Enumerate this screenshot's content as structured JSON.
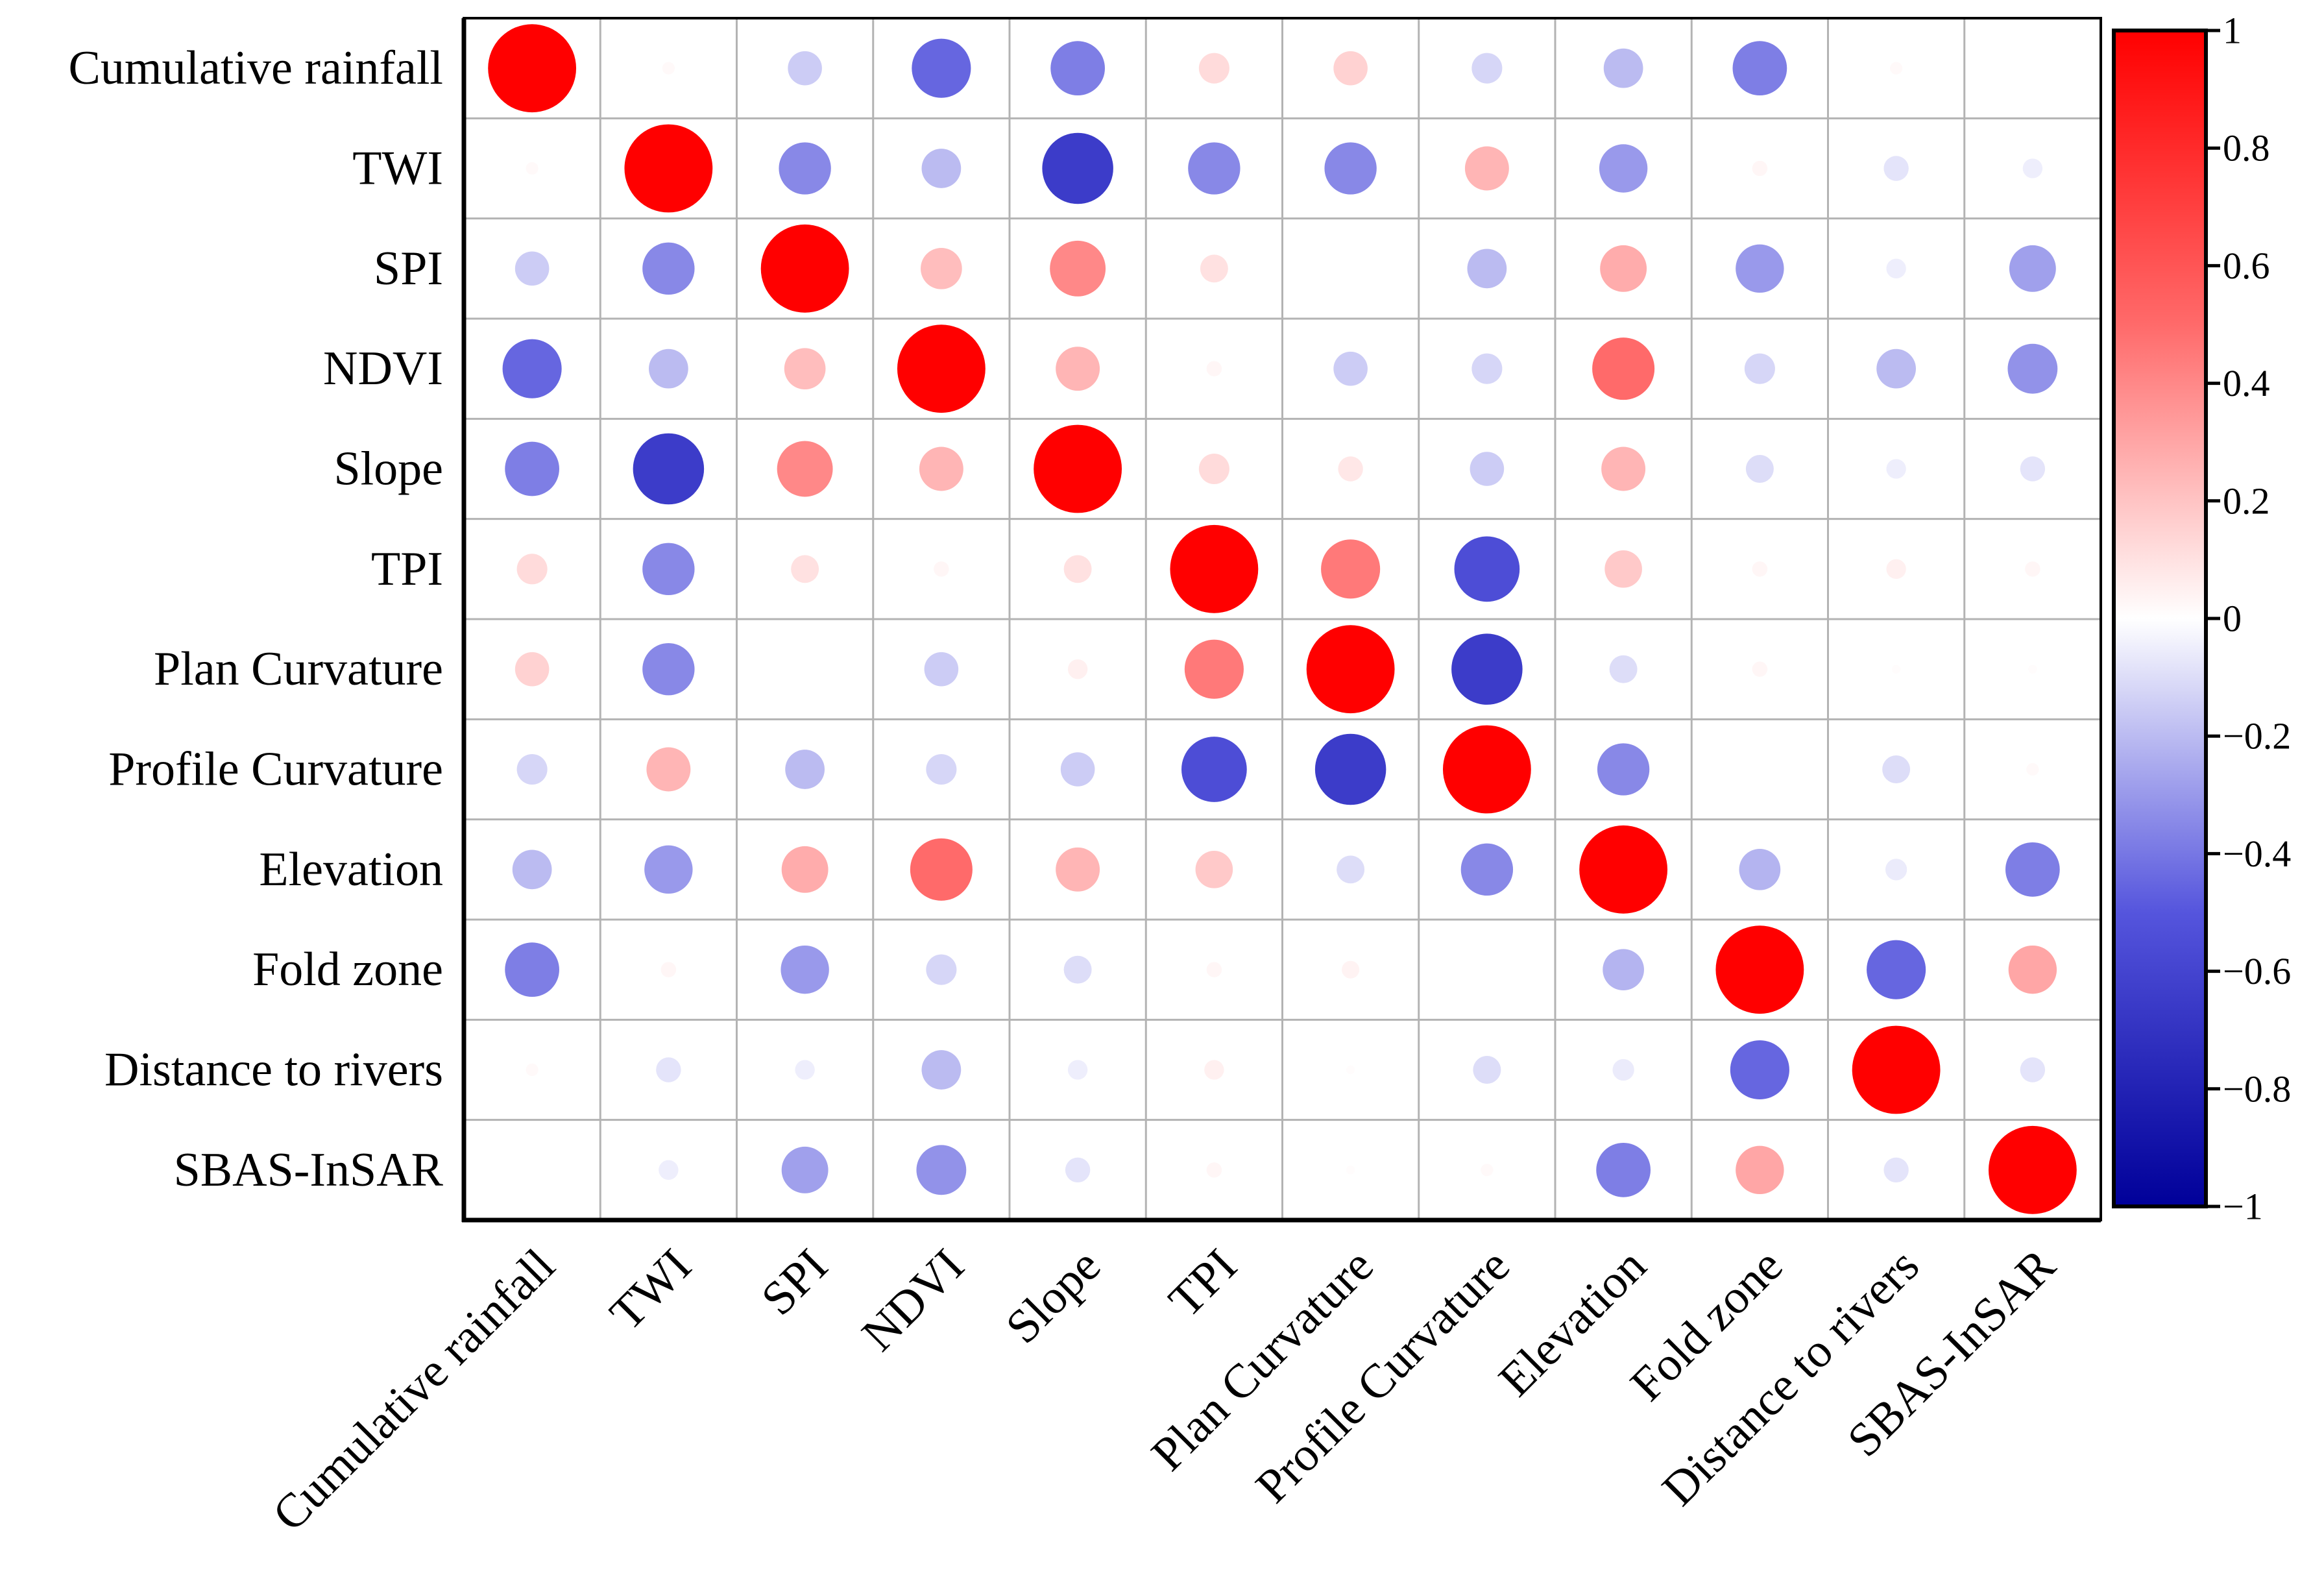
{
  "chart_data": {
    "type": "heatmap",
    "subtype": "correlation-circles",
    "title": "",
    "variables": [
      "Cumulative rainfall",
      "TWI",
      "SPI",
      "NDVI",
      "Slope",
      "TPI",
      "Plan Curvature",
      "Profile Curvature",
      "Elevation",
      "Fold zone",
      "Distance to rivers",
      "SBAS-InSAR"
    ],
    "matrix": [
      [
        1.0,
        0.02,
        -0.15,
        -0.45,
        -0.38,
        0.12,
        0.15,
        -0.12,
        -0.2,
        -0.38,
        0.02,
        0.0
      ],
      [
        0.02,
        1.0,
        -0.35,
        -0.2,
        -0.65,
        -0.35,
        -0.35,
        0.25,
        -0.3,
        0.03,
        -0.08,
        -0.05
      ],
      [
        -0.15,
        -0.35,
        1.0,
        0.22,
        0.4,
        0.1,
        0.0,
        -0.2,
        0.28,
        -0.3,
        -0.05,
        -0.28
      ],
      [
        -0.45,
        -0.2,
        0.22,
        1.0,
        0.25,
        0.03,
        -0.15,
        -0.12,
        0.5,
        -0.12,
        -0.2,
        -0.32
      ],
      [
        -0.38,
        -0.65,
        0.4,
        0.25,
        1.0,
        0.12,
        0.08,
        -0.15,
        0.25,
        -0.1,
        -0.05,
        -0.08
      ],
      [
        0.12,
        -0.35,
        0.1,
        0.03,
        0.1,
        1.0,
        0.45,
        -0.55,
        0.18,
        0.03,
        0.05,
        0.03
      ],
      [
        0.15,
        -0.35,
        0.0,
        -0.15,
        0.05,
        0.45,
        1.0,
        -0.65,
        -0.1,
        0.03,
        0.01,
        0.01
      ],
      [
        -0.12,
        0.25,
        -0.2,
        -0.12,
        -0.15,
        -0.55,
        -0.65,
        1.0,
        -0.35,
        0.0,
        -0.1,
        0.02
      ],
      [
        -0.2,
        -0.3,
        0.28,
        0.5,
        0.25,
        0.18,
        -0.1,
        -0.35,
        1.0,
        -0.22,
        -0.06,
        -0.38
      ],
      [
        -0.38,
        0.03,
        -0.3,
        -0.12,
        -0.1,
        0.03,
        0.04,
        0.0,
        -0.22,
        1.0,
        -0.45,
        0.3
      ],
      [
        0.02,
        -0.08,
        -0.05,
        -0.2,
        -0.05,
        0.05,
        0.01,
        -0.1,
        -0.06,
        -0.45,
        1.0,
        -0.08
      ],
      [
        0.0,
        -0.05,
        -0.28,
        -0.32,
        -0.08,
        0.03,
        0.01,
        0.02,
        -0.38,
        0.3,
        -0.08,
        1.0
      ]
    ],
    "colorbar": {
      "range": [
        -1,
        1
      ],
      "ticks": [
        -1,
        -0.8,
        -0.6,
        -0.4,
        -0.2,
        0,
        0.2,
        0.4,
        0.6,
        0.8,
        1
      ],
      "tick_labels": [
        "−1",
        "−0.8",
        "−0.6",
        "−0.4",
        "−0.2",
        "0",
        "0.2",
        "0.4",
        "0.6",
        "0.8",
        "1"
      ],
      "colors": {
        "negative_end": "#000099",
        "mid_negative": "#5555dd",
        "neutral": "#ffffff",
        "mid_positive": "#ff6a6a",
        "positive_end": "#ff0000"
      }
    },
    "grid_color": "#b3b3b3",
    "axis_color": "#000000"
  }
}
